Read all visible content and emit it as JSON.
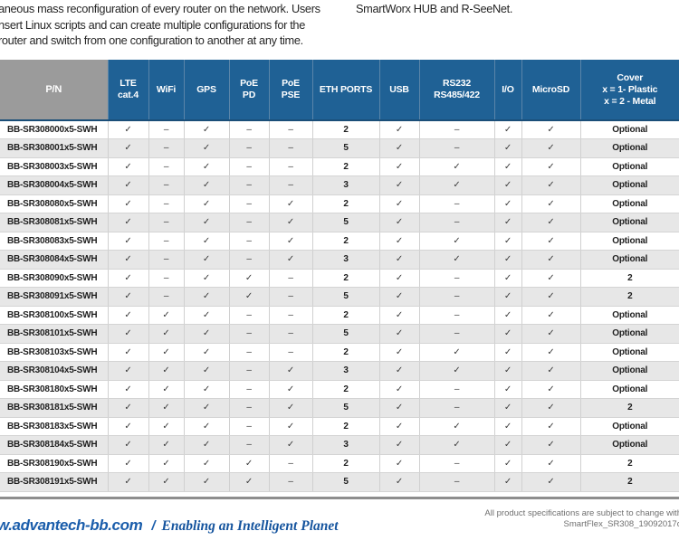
{
  "intro": {
    "left_lines": [
      "aneous mass reconfiguration of every router on the network. Users",
      "nsert Linux scripts and can create multiple configurations for the",
      "router and switch from one configuration to another at any time."
    ],
    "right_text": "SmartWorx HUB and R-SeeNet."
  },
  "table": {
    "columns": [
      {
        "label": "P/N"
      },
      {
        "label": "LTE\ncat.4"
      },
      {
        "label": "WiFi"
      },
      {
        "label": "GPS"
      },
      {
        "label": "PoE\nPD"
      },
      {
        "label": "PoE\nPSE"
      },
      {
        "label": "ETH PORTS"
      },
      {
        "label": "USB"
      },
      {
        "label": "RS232\nRS485/422"
      },
      {
        "label": "I/O"
      },
      {
        "label": "MicroSD"
      },
      {
        "label": "Cover\nx = 1- Plastic\nx = 2 - Metal"
      }
    ],
    "rows": [
      [
        "BB-SR308000x5-SWH",
        "✓",
        "–",
        "✓",
        "–",
        "–",
        "2",
        "✓",
        "–",
        "✓",
        "✓",
        "Optional"
      ],
      [
        "BB-SR308001x5-SWH",
        "✓",
        "–",
        "✓",
        "–",
        "–",
        "5",
        "✓",
        "–",
        "✓",
        "✓",
        "Optional"
      ],
      [
        "BB-SR308003x5-SWH",
        "✓",
        "–",
        "✓",
        "–",
        "–",
        "2",
        "✓",
        "✓",
        "✓",
        "✓",
        "Optional"
      ],
      [
        "BB-SR308004x5-SWH",
        "✓",
        "–",
        "✓",
        "–",
        "–",
        "3",
        "✓",
        "✓",
        "✓",
        "✓",
        "Optional"
      ],
      [
        "BB-SR308080x5-SWH",
        "✓",
        "–",
        "✓",
        "–",
        "✓",
        "2",
        "✓",
        "–",
        "✓",
        "✓",
        "Optional"
      ],
      [
        "BB-SR308081x5-SWH",
        "✓",
        "–",
        "✓",
        "–",
        "✓",
        "5",
        "✓",
        "–",
        "✓",
        "✓",
        "Optional"
      ],
      [
        "BB-SR308083x5-SWH",
        "✓",
        "–",
        "✓",
        "–",
        "✓",
        "2",
        "✓",
        "✓",
        "✓",
        "✓",
        "Optional"
      ],
      [
        "BB-SR308084x5-SWH",
        "✓",
        "–",
        "✓",
        "–",
        "✓",
        "3",
        "✓",
        "✓",
        "✓",
        "✓",
        "Optional"
      ],
      [
        "BB-SR308090x5-SWH",
        "✓",
        "–",
        "✓",
        "✓",
        "–",
        "2",
        "✓",
        "–",
        "✓",
        "✓",
        "2"
      ],
      [
        "BB-SR308091x5-SWH",
        "✓",
        "–",
        "✓",
        "✓",
        "–",
        "5",
        "✓",
        "–",
        "✓",
        "✓",
        "2"
      ],
      [
        "BB-SR308100x5-SWH",
        "✓",
        "✓",
        "✓",
        "–",
        "–",
        "2",
        "✓",
        "–",
        "✓",
        "✓",
        "Optional"
      ],
      [
        "BB-SR308101x5-SWH",
        "✓",
        "✓",
        "✓",
        "–",
        "–",
        "5",
        "✓",
        "–",
        "✓",
        "✓",
        "Optional"
      ],
      [
        "BB-SR308103x5-SWH",
        "✓",
        "✓",
        "✓",
        "–",
        "–",
        "2",
        "✓",
        "✓",
        "✓",
        "✓",
        "Optional"
      ],
      [
        "BB-SR308104x5-SWH",
        "✓",
        "✓",
        "✓",
        "–",
        "✓",
        "3",
        "✓",
        "✓",
        "✓",
        "✓",
        "Optional"
      ],
      [
        "BB-SR308180x5-SWH",
        "✓",
        "✓",
        "✓",
        "–",
        "✓",
        "2",
        "✓",
        "–",
        "✓",
        "✓",
        "Optional"
      ],
      [
        "BB-SR308181x5-SWH",
        "✓",
        "✓",
        "✓",
        "–",
        "✓",
        "5",
        "✓",
        "–",
        "✓",
        "✓",
        "2"
      ],
      [
        "BB-SR308183x5-SWH",
        "✓",
        "✓",
        "✓",
        "–",
        "✓",
        "2",
        "✓",
        "✓",
        "✓",
        "✓",
        "Optional"
      ],
      [
        "BB-SR308184x5-SWH",
        "✓",
        "✓",
        "✓",
        "–",
        "✓",
        "3",
        "✓",
        "✓",
        "✓",
        "✓",
        "Optional"
      ],
      [
        "BB-SR308190x5-SWH",
        "✓",
        "✓",
        "✓",
        "✓",
        "–",
        "2",
        "✓",
        "–",
        "✓",
        "✓",
        "2"
      ],
      [
        "BB-SR308191x5-SWH",
        "✓",
        "✓",
        "✓",
        "✓",
        "–",
        "5",
        "✓",
        "–",
        "✓",
        "✓",
        "2"
      ]
    ]
  },
  "footer": {
    "site": "w.advantech-bb.com",
    "separator": "/",
    "tagline": "Enabling an Intelligent Planet",
    "disclaimer_line1": "All product specifications are subject to change with",
    "disclaimer_line2": "SmartFlex_SR308_19092017d"
  },
  "colors": {
    "header_blue": "#1f6195",
    "header_gray": "#9b9b9b",
    "row_alt_gray": "#e7e7e7",
    "rule_gray": "#8d8d8d",
    "footer_blue": "#1a5dab"
  }
}
